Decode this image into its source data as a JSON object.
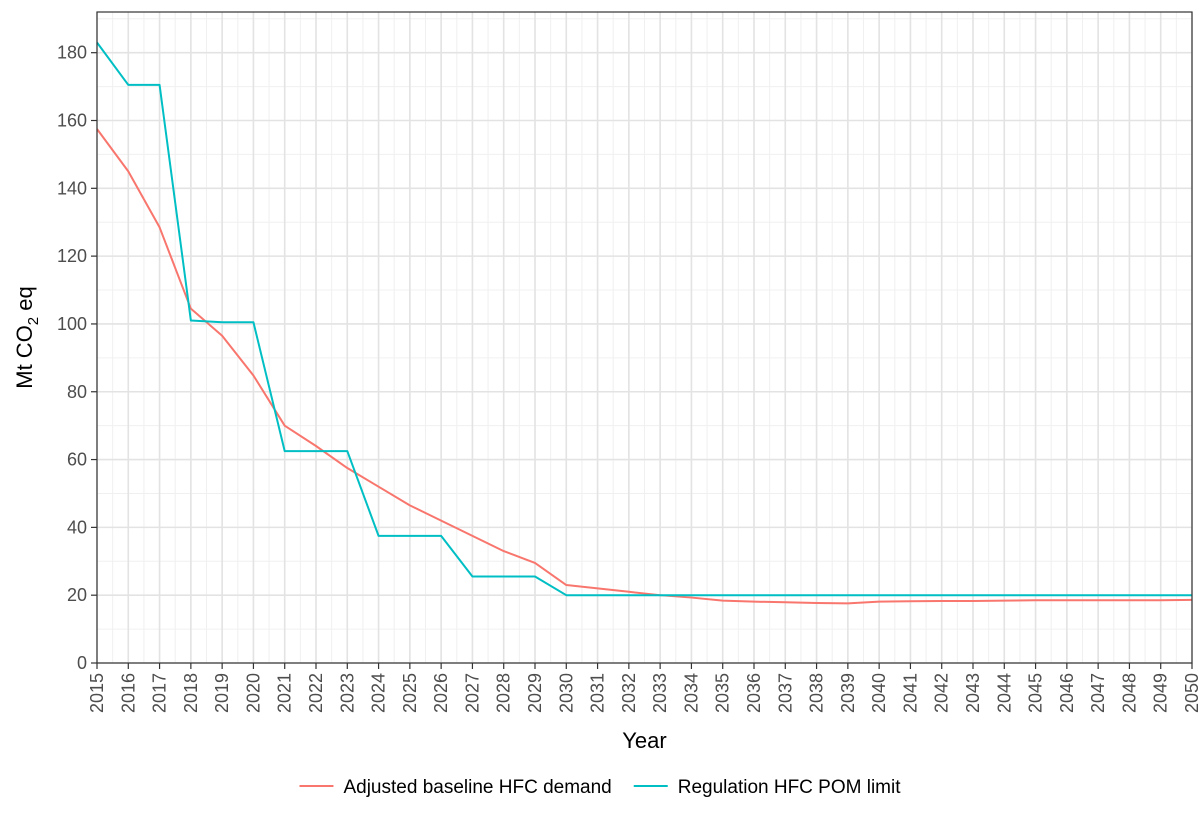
{
  "chart_data": {
    "type": "line",
    "title": "",
    "xlabel": "Year",
    "ylabel_main": "Mt CO",
    "ylabel_sub": "2",
    "ylabel_tail": " eq",
    "xlim": [
      2015,
      2050
    ],
    "ylim": [
      0,
      192
    ],
    "y_ticks": [
      0,
      20,
      40,
      60,
      80,
      100,
      120,
      140,
      160,
      180
    ],
    "x": [
      2015,
      2016,
      2017,
      2018,
      2019,
      2020,
      2021,
      2022,
      2023,
      2024,
      2025,
      2026,
      2027,
      2028,
      2029,
      2030,
      2031,
      2032,
      2033,
      2034,
      2035,
      2036,
      2037,
      2038,
      2039,
      2040,
      2041,
      2042,
      2043,
      2044,
      2045,
      2046,
      2047,
      2048,
      2049,
      2050
    ],
    "x_tick_labels": [
      "2015",
      "2016",
      "2017",
      "2018",
      "2019",
      "2020",
      "2021",
      "2022",
      "2023",
      "2024",
      "2025",
      "2026",
      "2027",
      "2028",
      "2029",
      "2030",
      "2031",
      "2032",
      "2033",
      "2034",
      "2035",
      "2036",
      "2037",
      "2038",
      "2039",
      "2040",
      "2041",
      "2042",
      "2043",
      "2044",
      "2045",
      "2046",
      "2047",
      "2048",
      "2049",
      "2050"
    ],
    "grid": true,
    "legend_position": "bottom",
    "series": [
      {
        "name": "Adjusted baseline HFC demand",
        "color": "#F8766D",
        "step": false,
        "values": [
          157.5,
          145,
          128.5,
          104.5,
          96.5,
          84.8,
          70,
          64,
          57.5,
          52,
          46.5,
          42,
          37.5,
          33,
          29.5,
          23,
          22,
          21,
          20,
          19.3,
          18.4,
          18.1,
          17.9,
          17.7,
          17.6,
          18.1,
          18.2,
          18.3,
          18.3,
          18.4,
          18.5,
          18.5,
          18.5,
          18.5,
          18.5,
          18.6
        ]
      },
      {
        "name": "Regulation HFC POM limit",
        "color": "#00BFC4",
        "step": true,
        "values": [
          183,
          170.5,
          170.5,
          101,
          100.5,
          100.5,
          62.5,
          62.5,
          62.5,
          37.5,
          37.5,
          37.5,
          25.5,
          25.5,
          25.5,
          20,
          20,
          20,
          20,
          20,
          20,
          20,
          20,
          20,
          20,
          20,
          20,
          20,
          20,
          20,
          20,
          20,
          20,
          20,
          20,
          20
        ]
      }
    ]
  }
}
